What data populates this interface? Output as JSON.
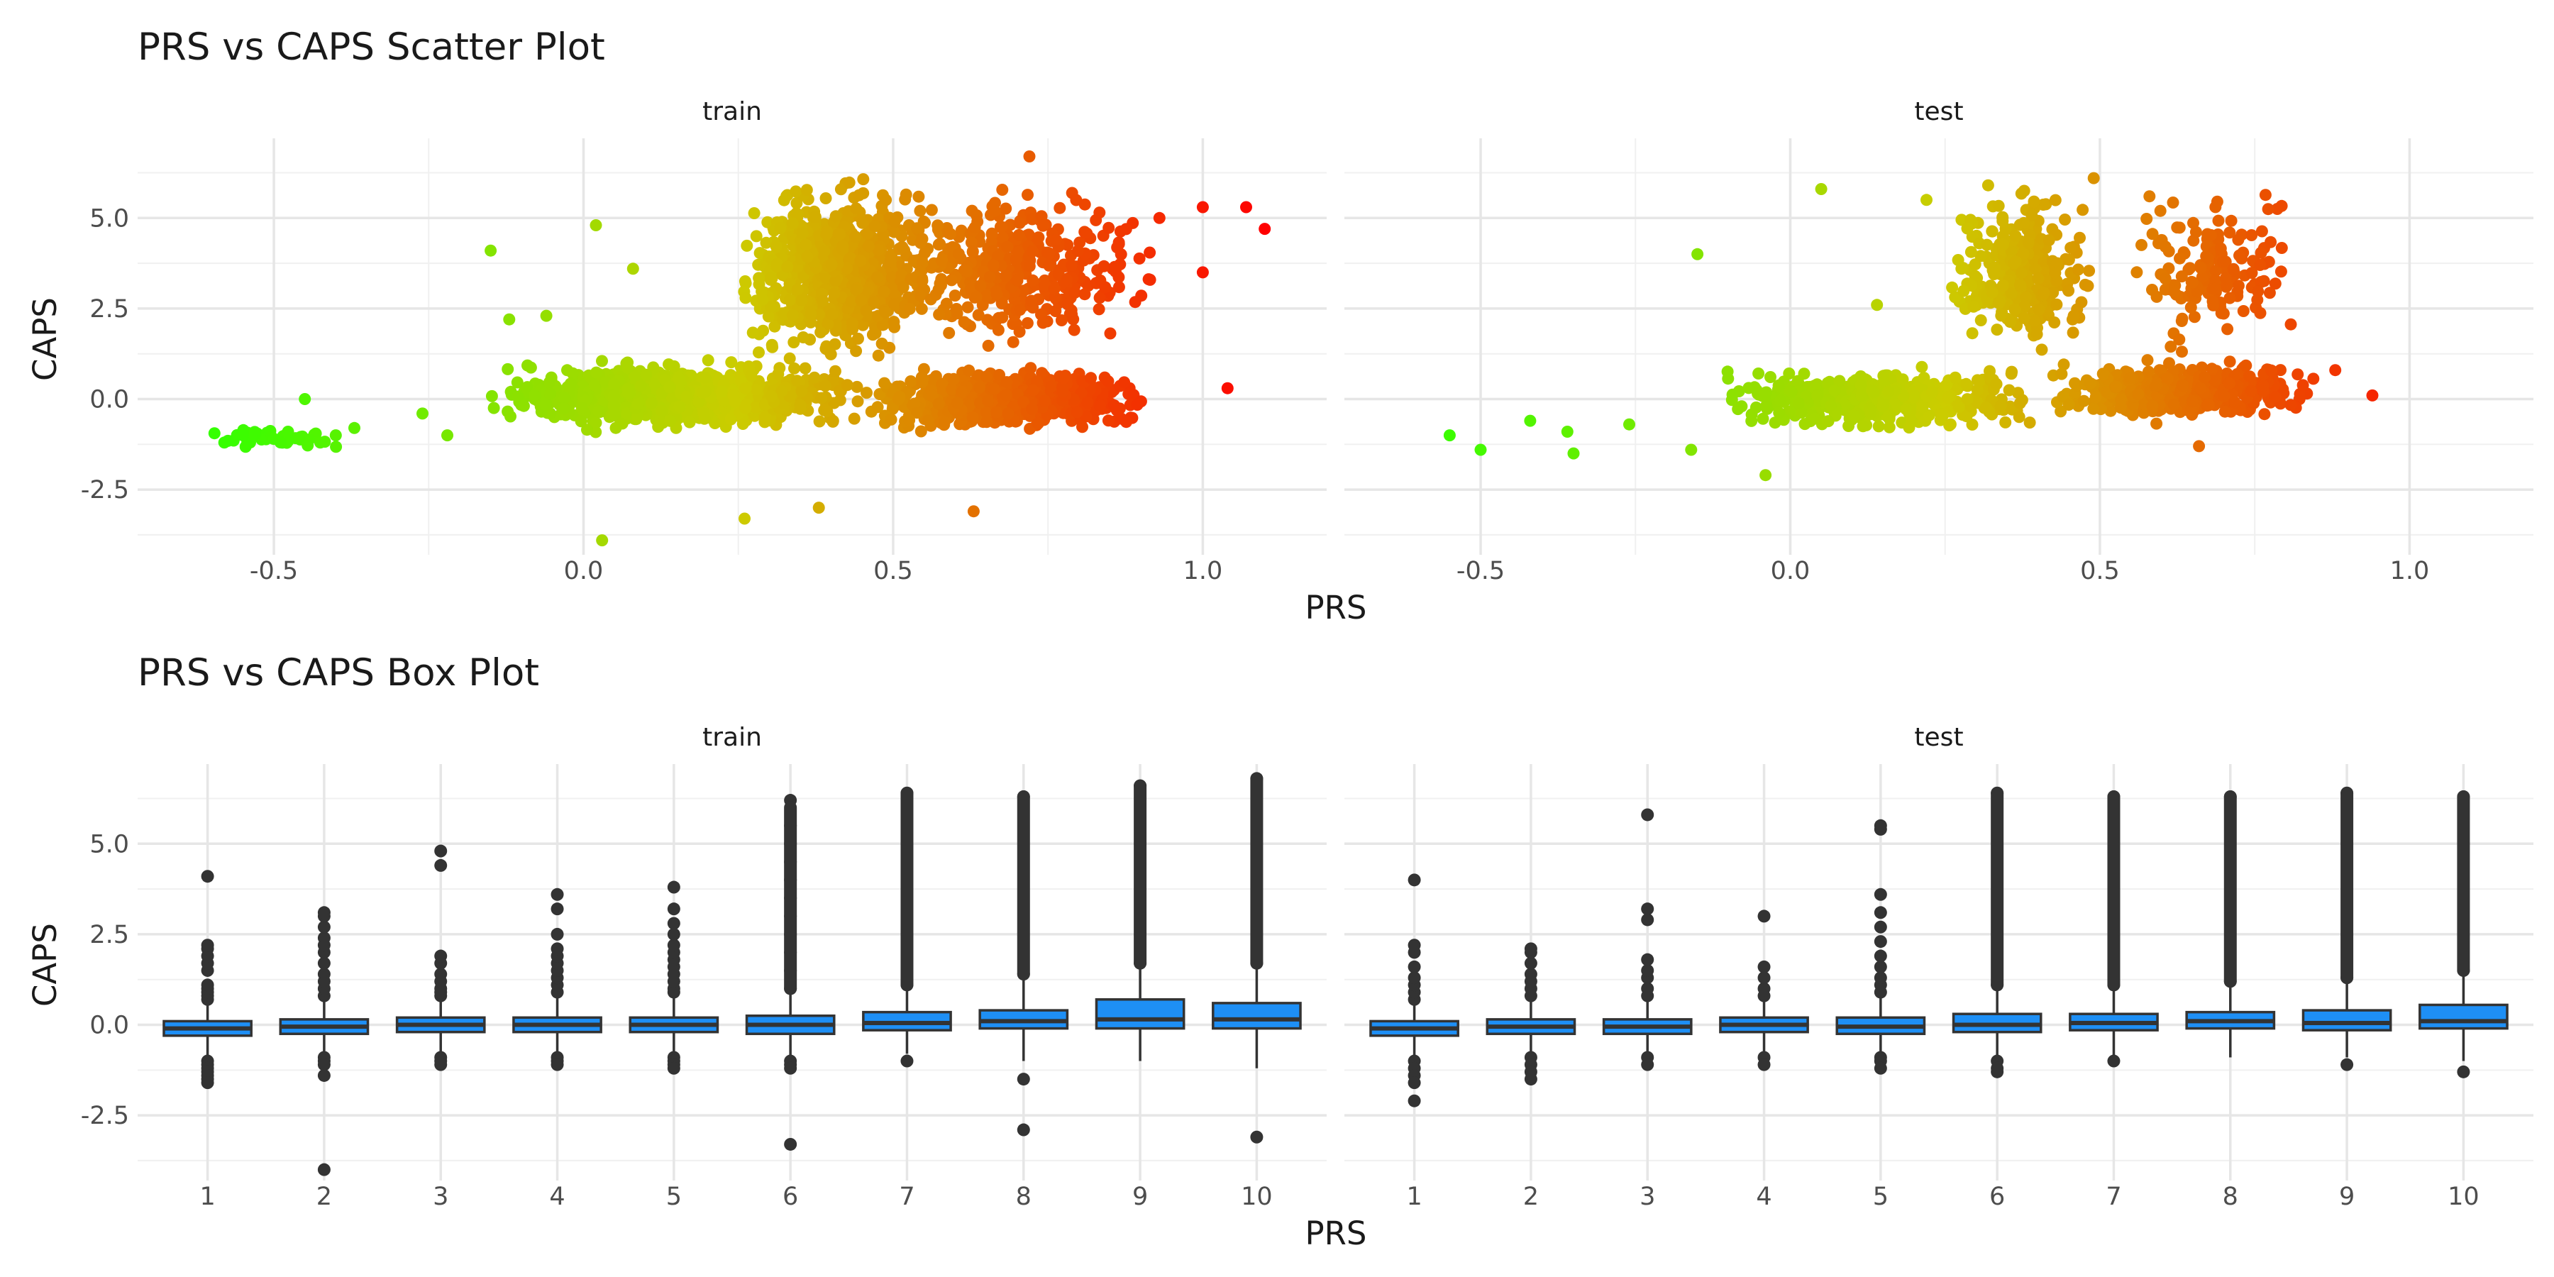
{
  "chart_data": [
    {
      "type": "scatter",
      "title": "PRS vs CAPS Scatter Plot",
      "xlabel": "PRS",
      "ylabel": "CAPS",
      "facets": [
        "train",
        "test"
      ],
      "xlim": [
        -0.72,
        1.2
      ],
      "ylim": [
        -4.3,
        7.2
      ],
      "x_ticks": [
        -0.5,
        0.0,
        0.5,
        1.0
      ],
      "x_tick_labels": [
        "-0.5",
        "0.0",
        "0.5",
        "1.0"
      ],
      "y_ticks": [
        -2.5,
        0.0,
        2.5,
        5.0
      ],
      "y_tick_labels": [
        "-2.5",
        "0.0",
        "2.5",
        "5.0"
      ],
      "grid": true,
      "legend": "none",
      "color_scale": {
        "low": "#33ff00",
        "mid": "#cccc00",
        "high": "#ff0000"
      },
      "panels": [
        {
          "facet": "train",
          "points": [
            {
              "x": -0.58,
              "y": -1.2
            },
            {
              "x": -0.55,
              "y": -1.0
            },
            {
              "x": -0.5,
              "y": -1.1
            },
            {
              "x": -0.45,
              "y": 0.0
            },
            {
              "x": -0.4,
              "y": -1.0
            },
            {
              "x": -0.37,
              "y": -0.8
            },
            {
              "x": -0.26,
              "y": -0.4
            },
            {
              "x": -0.22,
              "y": -1.0
            },
            {
              "x": -0.15,
              "y": 4.1
            },
            {
              "x": -0.12,
              "y": 2.2
            },
            {
              "x": -0.06,
              "y": 2.3
            },
            {
              "x": 0.02,
              "y": 4.8
            },
            {
              "x": 0.03,
              "y": -3.9
            },
            {
              "x": 0.08,
              "y": 3.6
            },
            {
              "x": 0.26,
              "y": -3.3
            },
            {
              "x": 0.38,
              "y": -3.0
            },
            {
              "x": 0.63,
              "y": -3.1
            },
            {
              "x": 0.72,
              "y": 6.7
            },
            {
              "x": 0.93,
              "y": 5.0
            },
            {
              "x": 1.0,
              "y": 5.3
            },
            {
              "x": 1.0,
              "y": 3.5
            },
            {
              "x": 1.04,
              "y": 0.3
            },
            {
              "x": 1.07,
              "y": 5.3
            },
            {
              "x": 1.1,
              "y": 4.7
            }
          ],
          "clusters": [
            {
              "x": [
                -0.6,
                -0.38
              ],
              "y": [
                -1.5,
                -0.7
              ],
              "n": 45
            },
            {
              "x": [
                -0.15,
                0.45
              ],
              "y": [
                -1.0,
                1.2
              ],
              "n": 900
            },
            {
              "x": [
                0.25,
                0.55
              ],
              "y": [
                0.8,
                6.3
              ],
              "n": 650
            },
            {
              "x": [
                0.45,
                0.92
              ],
              "y": [
                1.0,
                6.2
              ],
              "n": 420
            },
            {
              "x": [
                0.45,
                0.92
              ],
              "y": [
                -1.0,
                1.0
              ],
              "n": 600
            }
          ]
        },
        {
          "facet": "test",
          "points": [
            {
              "x": -0.55,
              "y": -1.0
            },
            {
              "x": -0.5,
              "y": -1.4
            },
            {
              "x": -0.42,
              "y": -0.6
            },
            {
              "x": -0.36,
              "y": -0.9
            },
            {
              "x": -0.35,
              "y": -1.5
            },
            {
              "x": -0.26,
              "y": -0.7
            },
            {
              "x": -0.16,
              "y": -1.4
            },
            {
              "x": -0.15,
              "y": 4.0
            },
            {
              "x": -0.04,
              "y": -2.1
            },
            {
              "x": 0.05,
              "y": 5.8
            },
            {
              "x": 0.14,
              "y": 2.6
            },
            {
              "x": 0.22,
              "y": 5.5
            },
            {
              "x": 0.49,
              "y": 6.1
            },
            {
              "x": 0.58,
              "y": 5.6
            },
            {
              "x": 0.66,
              "y": -1.3
            },
            {
              "x": 0.88,
              "y": 0.8
            },
            {
              "x": 0.94,
              "y": 0.1
            }
          ],
          "clusters": [
            {
              "x": [
                -0.12,
                0.4
              ],
              "y": [
                -1.0,
                1.0
              ],
              "n": 500
            },
            {
              "x": [
                0.25,
                0.5
              ],
              "y": [
                0.8,
                6.2
              ],
              "n": 260
            },
            {
              "x": [
                0.42,
                0.85
              ],
              "y": [
                -0.8,
                1.2
              ],
              "n": 380
            },
            {
              "x": [
                0.55,
                0.82
              ],
              "y": [
                1.0,
                6.2
              ],
              "n": 150
            }
          ]
        }
      ]
    },
    {
      "type": "box",
      "title": "PRS vs CAPS Box Plot",
      "xlabel": "PRS",
      "ylabel": "CAPS",
      "facets": [
        "train",
        "test"
      ],
      "categories": [
        "1",
        "2",
        "3",
        "4",
        "5",
        "6",
        "7",
        "8",
        "9",
        "10"
      ],
      "ylim": [
        -4.3,
        7.2
      ],
      "y_ticks": [
        -2.5,
        0.0,
        2.5,
        5.0
      ],
      "y_tick_labels": [
        "-2.5",
        "0.0",
        "2.5",
        "5.0"
      ],
      "grid": true,
      "box_fill": "#1e8ff5",
      "box_outline": "#333333",
      "panels": [
        {
          "facet": "train",
          "boxes": [
            {
              "category": "1",
              "q1": -0.3,
              "median": -0.1,
              "q3": 0.1,
              "whisker_low": -0.9,
              "whisker_high": 0.6,
              "outliers_low": [
                -1.0,
                -1.1,
                -1.2,
                -1.3,
                -1.4,
                -1.5,
                -1.6
              ],
              "outliers_high": [
                0.7,
                0.8,
                0.9,
                1.0,
                1.1,
                1.5,
                1.7,
                1.9,
                2.1,
                2.2,
                4.1
              ]
            },
            {
              "category": "2",
              "q1": -0.25,
              "median": -0.05,
              "q3": 0.15,
              "whisker_low": -0.8,
              "whisker_high": 0.7,
              "outliers_low": [
                -0.9,
                -1.0,
                -1.1,
                -1.4,
                -4.0
              ],
              "outliers_high": [
                0.8,
                1.0,
                1.2,
                1.4,
                1.7,
                2.0,
                2.2,
                2.4,
                2.7,
                3.0,
                3.1
              ]
            },
            {
              "category": "3",
              "q1": -0.2,
              "median": 0.0,
              "q3": 0.2,
              "whisker_low": -0.8,
              "whisker_high": 0.7,
              "outliers_low": [
                -0.9,
                -1.0,
                -1.1
              ],
              "outliers_high": [
                0.8,
                0.9,
                1.0,
                1.2,
                1.4,
                1.7,
                1.9,
                4.4,
                4.8
              ]
            },
            {
              "category": "4",
              "q1": -0.2,
              "median": 0.0,
              "q3": 0.2,
              "whisker_low": -0.8,
              "whisker_high": 0.8,
              "outliers_low": [
                -0.9,
                -1.0,
                -1.1
              ],
              "outliers_high": [
                0.9,
                1.1,
                1.3,
                1.5,
                1.7,
                1.9,
                2.1,
                2.5,
                3.2,
                3.6
              ]
            },
            {
              "category": "5",
              "q1": -0.2,
              "median": 0.0,
              "q3": 0.2,
              "whisker_low": -0.8,
              "whisker_high": 0.8,
              "outliers_low": [
                -0.9,
                -1.0,
                -1.1,
                -1.2
              ],
              "outliers_high": [
                0.9,
                1.0,
                1.2,
                1.4,
                1.6,
                1.8,
                2.0,
                2.2,
                2.5,
                2.8,
                3.2,
                3.8
              ]
            },
            {
              "category": "6",
              "q1": -0.25,
              "median": 0.0,
              "q3": 0.25,
              "whisker_low": -0.9,
              "whisker_high": 0.9,
              "outliers_low": [
                -1.0,
                -1.1,
                -1.2,
                -3.3
              ],
              "outliers_high": [
                1.0,
                1.5,
                2.0,
                2.5,
                3.0,
                3.5,
                4.0,
                4.5,
                5.0,
                5.5,
                6.2
              ],
              "dense_high": [
                1.0,
                6.0
              ]
            },
            {
              "category": "7",
              "q1": -0.15,
              "median": 0.05,
              "q3": 0.35,
              "whisker_low": -0.8,
              "whisker_high": 1.0,
              "outliers_low": [
                -1.0
              ],
              "outliers_high": [
                1.1,
                6.4
              ],
              "dense_high": [
                1.1,
                6.4
              ]
            },
            {
              "category": "8",
              "q1": -0.1,
              "median": 0.1,
              "q3": 0.4,
              "whisker_low": -1.0,
              "whisker_high": 1.3,
              "outliers_low": [
                -1.5,
                -2.9
              ],
              "outliers_high": [
                1.4,
                6.3
              ],
              "dense_high": [
                1.4,
                6.3
              ]
            },
            {
              "category": "9",
              "q1": -0.1,
              "median": 0.15,
              "q3": 0.7,
              "whisker_low": -1.0,
              "whisker_high": 1.6,
              "outliers_low": [],
              "outliers_high": [
                1.7,
                6.6
              ],
              "dense_high": [
                1.7,
                6.6
              ]
            },
            {
              "category": "10",
              "q1": -0.1,
              "median": 0.15,
              "q3": 0.6,
              "whisker_low": -1.2,
              "whisker_high": 1.6,
              "outliers_low": [
                -3.1
              ],
              "outliers_high": [
                1.7,
                6.8
              ],
              "dense_high": [
                1.7,
                6.8
              ]
            }
          ]
        },
        {
          "facet": "test",
          "boxes": [
            {
              "category": "1",
              "q1": -0.3,
              "median": -0.1,
              "q3": 0.1,
              "whisker_low": -0.9,
              "whisker_high": 0.6,
              "outliers_low": [
                -1.0,
                -1.2,
                -1.4,
                -1.6,
                -2.1
              ],
              "outliers_high": [
                0.7,
                0.9,
                1.1,
                1.3,
                1.6,
                2.0,
                2.2,
                4.0
              ]
            },
            {
              "category": "2",
              "q1": -0.25,
              "median": -0.05,
              "q3": 0.15,
              "whisker_low": -0.8,
              "whisker_high": 0.7,
              "outliers_low": [
                -0.9,
                -1.1,
                -1.3,
                -1.5
              ],
              "outliers_high": [
                0.8,
                1.0,
                1.2,
                1.4,
                1.7,
                2.0,
                2.1
              ]
            },
            {
              "category": "3",
              "q1": -0.25,
              "median": -0.05,
              "q3": 0.15,
              "whisker_low": -0.8,
              "whisker_high": 0.7,
              "outliers_low": [
                -0.9,
                -1.1
              ],
              "outliers_high": [
                0.8,
                1.0,
                1.3,
                1.5,
                1.8,
                2.9,
                3.2,
                5.8
              ]
            },
            {
              "category": "4",
              "q1": -0.2,
              "median": 0.0,
              "q3": 0.2,
              "whisker_low": -0.8,
              "whisker_high": 0.7,
              "outliers_low": [
                -0.9,
                -1.1
              ],
              "outliers_high": [
                0.8,
                1.0,
                1.3,
                1.6,
                3.0
              ]
            },
            {
              "category": "5",
              "q1": -0.25,
              "median": -0.05,
              "q3": 0.2,
              "whisker_low": -0.8,
              "whisker_high": 0.8,
              "outliers_low": [
                -0.9,
                -1.0,
                -1.2
              ],
              "outliers_high": [
                0.9,
                1.1,
                1.3,
                1.6,
                1.9,
                2.3,
                2.7,
                3.1,
                3.6,
                5.4,
                5.5
              ]
            },
            {
              "category": "6",
              "q1": -0.2,
              "median": 0.0,
              "q3": 0.3,
              "whisker_low": -0.9,
              "whisker_high": 1.0,
              "outliers_low": [
                -1.0,
                -1.2,
                -1.3
              ],
              "outliers_high": [
                1.1,
                6.4
              ],
              "dense_high": [
                1.1,
                6.4
              ]
            },
            {
              "category": "7",
              "q1": -0.15,
              "median": 0.05,
              "q3": 0.3,
              "whisker_low": -0.9,
              "whisker_high": 1.0,
              "outliers_low": [
                -1.0
              ],
              "outliers_high": [
                1.1,
                6.3
              ],
              "dense_high": [
                1.1,
                6.3
              ]
            },
            {
              "category": "8",
              "q1": -0.1,
              "median": 0.1,
              "q3": 0.35,
              "whisker_low": -0.9,
              "whisker_high": 1.1,
              "outliers_low": [],
              "outliers_high": [
                1.2,
                6.3
              ],
              "dense_high": [
                1.2,
                6.3
              ]
            },
            {
              "category": "9",
              "q1": -0.15,
              "median": 0.05,
              "q3": 0.4,
              "whisker_low": -0.9,
              "whisker_high": 1.2,
              "outliers_low": [
                -1.1
              ],
              "outliers_high": [
                1.3,
                6.4
              ],
              "dense_high": [
                1.3,
                6.4
              ]
            },
            {
              "category": "10",
              "q1": -0.1,
              "median": 0.1,
              "q3": 0.55,
              "whisker_low": -1.0,
              "whisker_high": 1.4,
              "outliers_low": [
                -1.3
              ],
              "outliers_high": [
                1.5,
                6.3
              ],
              "dense_high": [
                1.5,
                6.3
              ]
            }
          ]
        }
      ]
    }
  ]
}
